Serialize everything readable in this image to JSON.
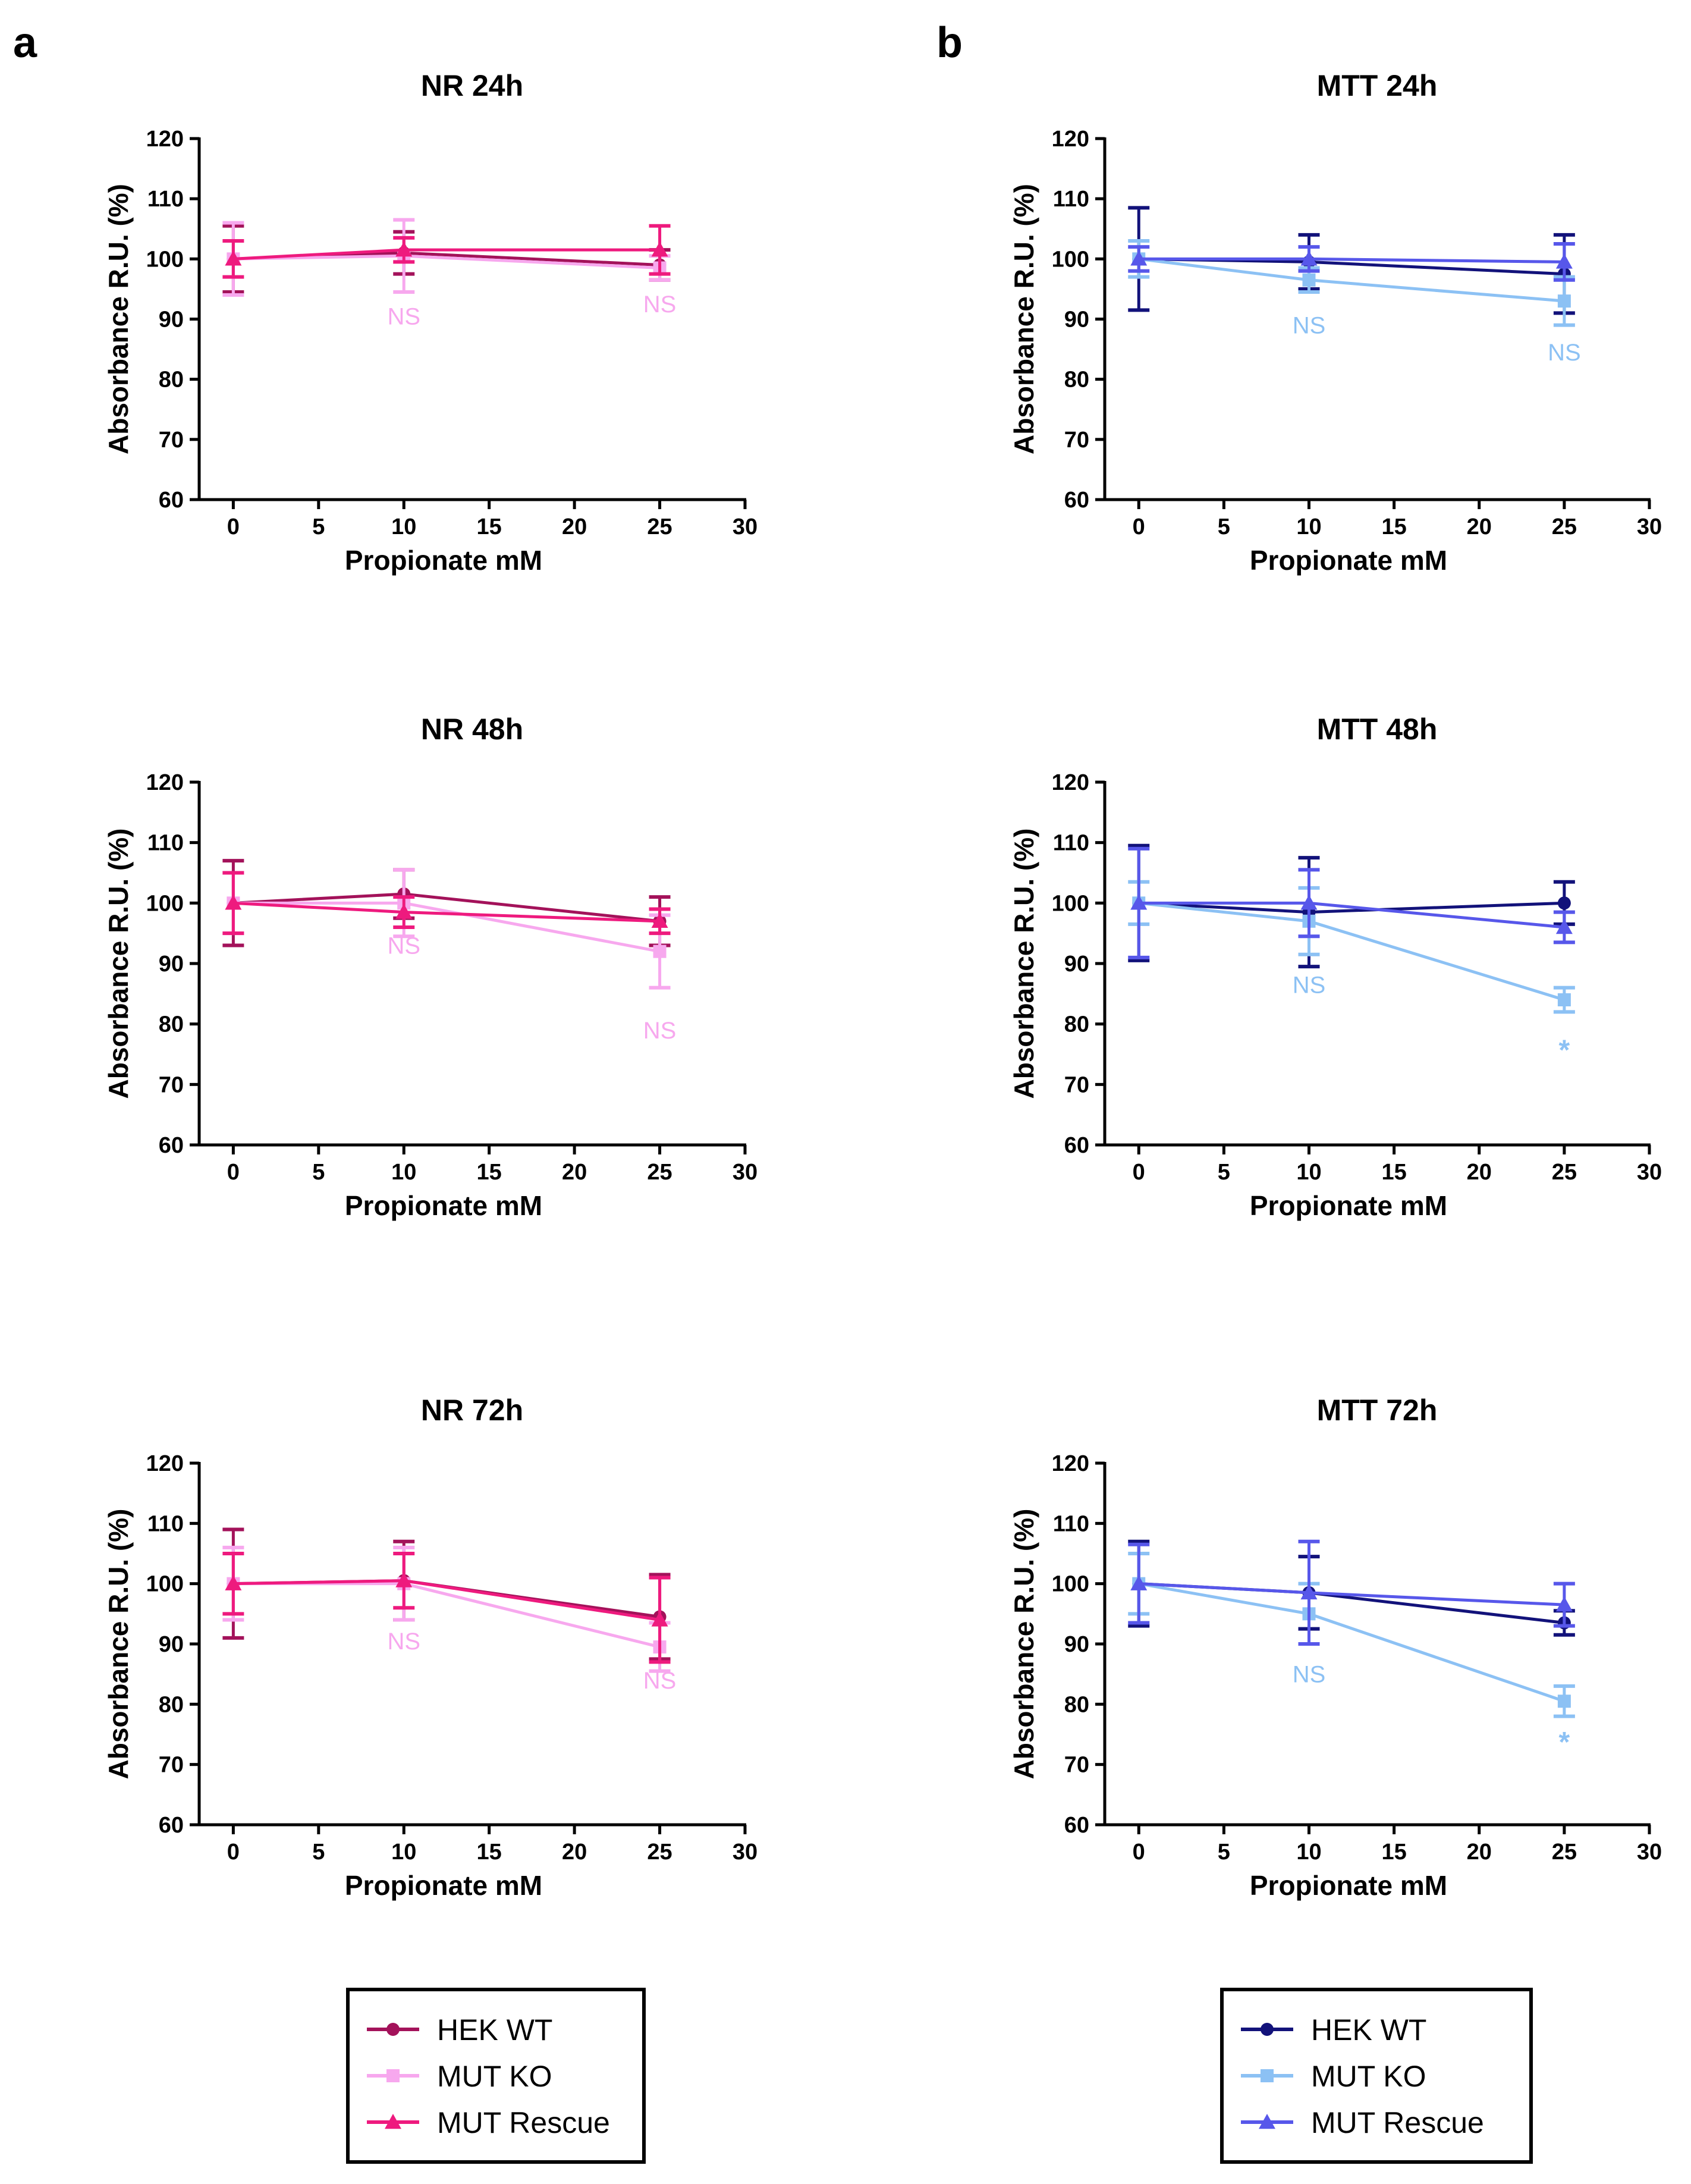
{
  "panel_labels": {
    "a": "a",
    "b": "b"
  },
  "colors": {
    "nr": {
      "HEK WT": "#a3125a",
      "MUT KO": "#f7a8ee",
      "MUT Rescue": "#ee1a7e"
    },
    "mtt": {
      "HEK WT": "#12127a",
      "MUT KO": "#8cc1f4",
      "MUT Rescue": "#5757ea"
    }
  },
  "legends": [
    {
      "panel": "a",
      "entries": [
        {
          "label": "HEK WT",
          "marker": "circle"
        },
        {
          "label": "MUT KO",
          "marker": "square"
        },
        {
          "label": "MUT Rescue",
          "marker": "triangle"
        }
      ]
    },
    {
      "panel": "b",
      "entries": [
        {
          "label": "HEK WT",
          "marker": "circle"
        },
        {
          "label": "MUT KO",
          "marker": "square"
        },
        {
          "label": "MUT Rescue",
          "marker": "triangle"
        }
      ]
    }
  ],
  "chart_data": [
    {
      "id": "nr24",
      "type": "line",
      "panel": "a",
      "palette": "nr",
      "title": "NR 24h",
      "xlabel": "Propionate mM",
      "ylabel": "Absorbance R.U. (%)",
      "xlim": [
        -2,
        30
      ],
      "ylim": [
        60,
        120
      ],
      "xticks": [
        0,
        5,
        10,
        15,
        20,
        25,
        30
      ],
      "yticks": [
        60,
        70,
        80,
        90,
        100,
        110,
        120
      ],
      "x": [
        0,
        10,
        25
      ],
      "series": [
        {
          "name": "HEK WT",
          "marker": "circle",
          "values": [
            100,
            101,
            99
          ],
          "errors": [
            5.5,
            3.5,
            2.5
          ]
        },
        {
          "name": "MUT KO",
          "marker": "square",
          "values": [
            100,
            100.5,
            98.5
          ],
          "errors": [
            6,
            6,
            2
          ]
        },
        {
          "name": "MUT Rescue",
          "marker": "triangle",
          "values": [
            100,
            101.5,
            101.5
          ],
          "errors": [
            3,
            2,
            4
          ]
        }
      ],
      "annotations": [
        {
          "x": 10,
          "y": 90.5,
          "text": "NS",
          "series": "MUT KO"
        },
        {
          "x": 25,
          "y": 92.5,
          "text": "NS",
          "series": "MUT KO"
        }
      ]
    },
    {
      "id": "nr48",
      "type": "line",
      "panel": "a",
      "palette": "nr",
      "title": "NR 48h",
      "xlabel": "Propionate mM",
      "ylabel": "Absorbance R.U. (%)",
      "xlim": [
        -2,
        30
      ],
      "ylim": [
        60,
        120
      ],
      "xticks": [
        0,
        5,
        10,
        15,
        20,
        25,
        30
      ],
      "yticks": [
        60,
        70,
        80,
        90,
        100,
        110,
        120
      ],
      "x": [
        0,
        10,
        25
      ],
      "series": [
        {
          "name": "HEK WT",
          "marker": "circle",
          "values": [
            100,
            101.5,
            97
          ],
          "errors": [
            7,
            4,
            4
          ]
        },
        {
          "name": "MUT KO",
          "marker": "square",
          "values": [
            100,
            100,
            92
          ],
          "errors": [
            5,
            5.5,
            6
          ]
        },
        {
          "name": "MUT Rescue",
          "marker": "triangle",
          "values": [
            100,
            98.5,
            97
          ],
          "errors": [
            5,
            2.5,
            2
          ]
        }
      ],
      "annotations": [
        {
          "x": 10,
          "y": 93,
          "text": "NS",
          "series": "MUT KO"
        },
        {
          "x": 25,
          "y": 79,
          "text": "NS",
          "series": "MUT KO"
        }
      ]
    },
    {
      "id": "nr72",
      "type": "line",
      "panel": "a",
      "palette": "nr",
      "title": "NR 72h",
      "xlabel": "Propionate mM",
      "ylabel": "Absorbance R.U. (%)",
      "xlim": [
        -2,
        30
      ],
      "ylim": [
        60,
        120
      ],
      "xticks": [
        0,
        5,
        10,
        15,
        20,
        25,
        30
      ],
      "yticks": [
        60,
        70,
        80,
        90,
        100,
        110,
        120
      ],
      "x": [
        0,
        10,
        25
      ],
      "series": [
        {
          "name": "HEK WT",
          "marker": "circle",
          "values": [
            100,
            100.5,
            94.5
          ],
          "errors": [
            9,
            6.5,
            7
          ]
        },
        {
          "name": "MUT KO",
          "marker": "square",
          "values": [
            100,
            100,
            89.5
          ],
          "errors": [
            6,
            6,
            4
          ]
        },
        {
          "name": "MUT Rescue",
          "marker": "triangle",
          "values": [
            100,
            100.5,
            94
          ],
          "errors": [
            5,
            4.5,
            7
          ]
        }
      ],
      "annotations": [
        {
          "x": 10,
          "y": 90.5,
          "text": "NS",
          "series": "MUT KO"
        },
        {
          "x": 25,
          "y": 84,
          "text": "NS",
          "series": "MUT KO"
        }
      ]
    },
    {
      "id": "mtt24",
      "type": "line",
      "panel": "b",
      "palette": "mtt",
      "title": "MTT 24h",
      "xlabel": "Propionate mM",
      "ylabel": "Absorbance R.U. (%)",
      "xlim": [
        -2,
        30
      ],
      "ylim": [
        60,
        120
      ],
      "xticks": [
        0,
        5,
        10,
        15,
        20,
        25,
        30
      ],
      "yticks": [
        60,
        70,
        80,
        90,
        100,
        110,
        120
      ],
      "x": [
        0,
        10,
        25
      ],
      "series": [
        {
          "name": "HEK WT",
          "marker": "circle",
          "values": [
            100,
            99.5,
            97.5
          ],
          "errors": [
            8.5,
            4.5,
            6.5
          ]
        },
        {
          "name": "MUT KO",
          "marker": "square",
          "values": [
            100,
            96.5,
            93
          ],
          "errors": [
            3,
            2,
            4
          ]
        },
        {
          "name": "MUT Rescue",
          "marker": "triangle",
          "values": [
            100,
            100,
            99.5
          ],
          "errors": [
            2,
            2,
            3
          ]
        }
      ],
      "annotations": [
        {
          "x": 10,
          "y": 89,
          "text": "NS",
          "series": "MUT KO"
        },
        {
          "x": 25,
          "y": 84.5,
          "text": "NS",
          "series": "MUT KO"
        }
      ]
    },
    {
      "id": "mtt48",
      "type": "line",
      "panel": "b",
      "palette": "mtt",
      "title": "MTT 48h",
      "xlabel": "Propionate mM",
      "ylabel": "Absorbance R.U. (%)",
      "xlim": [
        -2,
        30
      ],
      "ylim": [
        60,
        120
      ],
      "xticks": [
        0,
        5,
        10,
        15,
        20,
        25,
        30
      ],
      "yticks": [
        60,
        70,
        80,
        90,
        100,
        110,
        120
      ],
      "x": [
        0,
        10,
        25
      ],
      "series": [
        {
          "name": "HEK WT",
          "marker": "circle",
          "values": [
            100,
            98.5,
            100
          ],
          "errors": [
            9.5,
            9,
            3.5
          ]
        },
        {
          "name": "MUT KO",
          "marker": "square",
          "values": [
            100,
            97,
            84
          ],
          "errors": [
            3.5,
            5.5,
            2
          ]
        },
        {
          "name": "MUT Rescue",
          "marker": "triangle",
          "values": [
            100,
            100,
            96
          ],
          "errors": [
            9,
            5.5,
            2.5
          ]
        }
      ],
      "annotations": [
        {
          "x": 10,
          "y": 86.5,
          "text": "NS",
          "series": "MUT KO"
        },
        {
          "x": 25,
          "y": 75.5,
          "text": "*",
          "series": "MUT KO"
        }
      ]
    },
    {
      "id": "mtt72",
      "type": "line",
      "panel": "b",
      "palette": "mtt",
      "title": "MTT 72h",
      "xlabel": "Propionate mM",
      "ylabel": "Absorbance R.U. (%)",
      "xlim": [
        -2,
        30
      ],
      "ylim": [
        60,
        120
      ],
      "xticks": [
        0,
        5,
        10,
        15,
        20,
        25,
        30
      ],
      "yticks": [
        60,
        70,
        80,
        90,
        100,
        110,
        120
      ],
      "x": [
        0,
        10,
        25
      ],
      "series": [
        {
          "name": "HEK WT",
          "marker": "circle",
          "values": [
            100,
            98.5,
            93.5
          ],
          "errors": [
            7,
            6,
            2
          ]
        },
        {
          "name": "MUT KO",
          "marker": "square",
          "values": [
            100,
            95,
            80.5
          ],
          "errors": [
            5,
            5,
            2.5
          ]
        },
        {
          "name": "MUT Rescue",
          "marker": "triangle",
          "values": [
            100,
            98.5,
            96.5
          ],
          "errors": [
            6.5,
            8.5,
            3.5
          ]
        }
      ],
      "annotations": [
        {
          "x": 10,
          "y": 85,
          "text": "NS",
          "series": "MUT KO"
        },
        {
          "x": 25,
          "y": 73.5,
          "text": "*",
          "series": "MUT KO"
        }
      ]
    }
  ]
}
